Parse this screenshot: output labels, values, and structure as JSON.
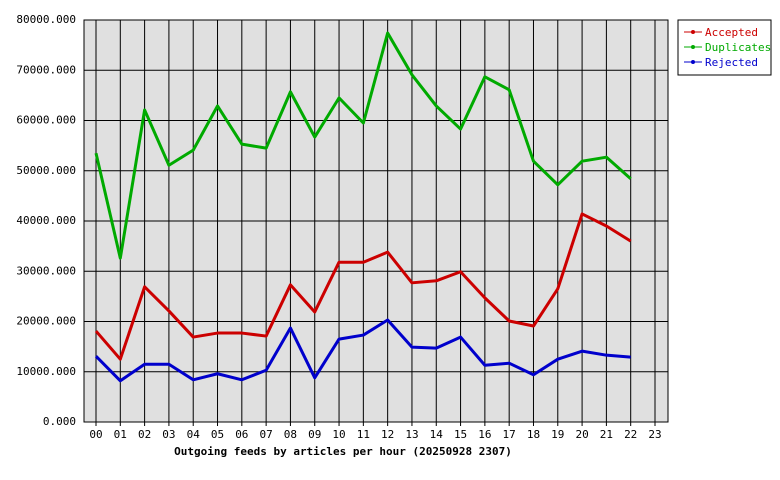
{
  "chart_data": {
    "type": "line",
    "title": "Outgoing feeds by articles per hour (20250928 2307)",
    "categories": [
      "00",
      "01",
      "02",
      "03",
      "04",
      "05",
      "06",
      "07",
      "08",
      "09",
      "10",
      "11",
      "12",
      "13",
      "14",
      "15",
      "16",
      "17",
      "18",
      "19",
      "20",
      "21",
      "22",
      "23"
    ],
    "series": [
      {
        "name": "Accepted",
        "color": "#cc0000",
        "values": [
          18100,
          12500,
          26900,
          22100,
          16900,
          17700,
          17700,
          17100,
          27300,
          21900,
          31800,
          31800,
          33800,
          27700,
          28100,
          29900,
          24700,
          20100,
          19100,
          26500,
          41400,
          39000,
          36000,
          null
        ]
      },
      {
        "name": "Duplicates",
        "color": "#00aa00",
        "values": [
          53500,
          32600,
          62100,
          51100,
          54100,
          62900,
          55300,
          54500,
          65700,
          56700,
          64500,
          59500,
          77400,
          69100,
          62900,
          58300,
          68700,
          66100,
          51900,
          47200,
          51900,
          52700,
          48400,
          null
        ]
      },
      {
        "name": "Rejected",
        "color": "#0000cc",
        "values": [
          13100,
          8200,
          11500,
          11500,
          8400,
          9600,
          8400,
          10300,
          18700,
          8800,
          16500,
          17300,
          20300,
          14900,
          14700,
          16900,
          11300,
          11700,
          9400,
          12500,
          14100,
          13300,
          12900,
          null
        ]
      }
    ],
    "ylim": [
      0,
      80000
    ],
    "yticks": [
      {
        "value": 0,
        "label": "0.000"
      },
      {
        "value": 10000,
        "label": "10000.000"
      },
      {
        "value": 20000,
        "label": "20000.000"
      },
      {
        "value": 30000,
        "label": "30000.000"
      },
      {
        "value": 40000,
        "label": "40000.000"
      },
      {
        "value": 50000,
        "label": "50000.000"
      },
      {
        "value": 60000,
        "label": "60000.000"
      },
      {
        "value": 70000,
        "label": "70000.000"
      },
      {
        "value": 80000,
        "label": "80000.000"
      }
    ],
    "grid": true,
    "legend": "upper-right"
  }
}
